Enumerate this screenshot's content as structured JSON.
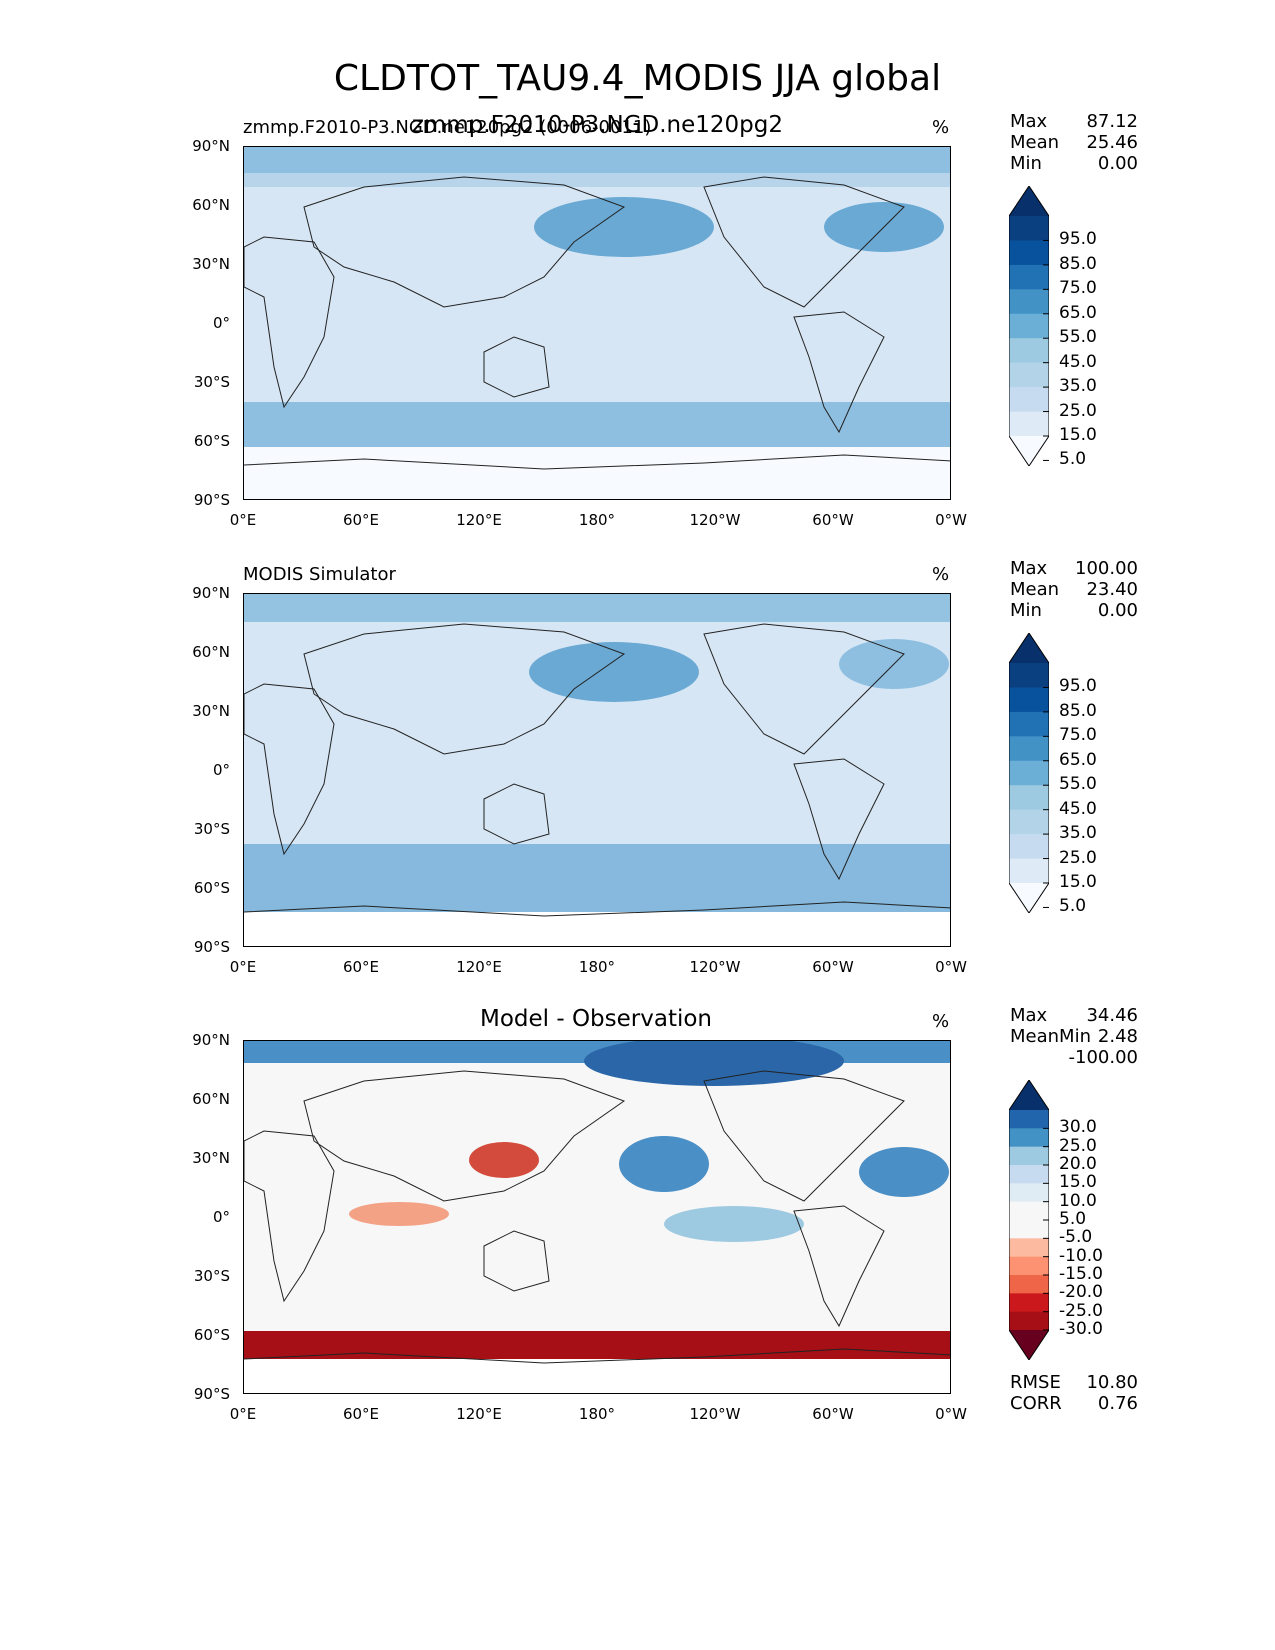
{
  "figure": {
    "title": "CLDTOT_TAU9.4_MODIS JJA global",
    "y_ticks": [
      "90°N",
      "60°N",
      "30°N",
      "0°",
      "30°S",
      "60°S",
      "90°S"
    ],
    "x_ticks": [
      "0°E",
      "60°E",
      "120°E",
      "180°",
      "120°W",
      "60°W",
      "0°W"
    ]
  },
  "panels": [
    {
      "id": "test",
      "title_left": "zmmp.F2010-P3.NGD.ne120pg2 (0006-0011)",
      "title_center": "zmmp.F2010-P3.NGD.ne120pg2",
      "units": "%",
      "stats": [
        {
          "label": "Max",
          "value": "87.12"
        },
        {
          "label": "Mean",
          "value": "25.46"
        },
        {
          "label": "Min",
          "value": "0.00"
        }
      ],
      "colorbar": {
        "colors": [
          "#f7fbff",
          "#deebf7",
          "#c6dbef",
          "#b3d3e8",
          "#9ecae1",
          "#6baed6",
          "#4292c6",
          "#2171b5",
          "#08519c",
          "#0a3f80",
          "#08306b"
        ],
        "labels": [
          "95.0",
          "85.0",
          "75.0",
          "65.0",
          "55.0",
          "45.0",
          "35.0",
          "25.0",
          "15.0",
          "5.0"
        ]
      }
    },
    {
      "id": "ref",
      "title_left": "MODIS Simulator",
      "title_center": "",
      "units": "%",
      "stats": [
        {
          "label": "Max",
          "value": "100.00"
        },
        {
          "label": "Mean",
          "value": "23.40"
        },
        {
          "label": "Min",
          "value": "0.00"
        }
      ],
      "colorbar": {
        "colors": [
          "#f7fbff",
          "#deebf7",
          "#c6dbef",
          "#b3d3e8",
          "#9ecae1",
          "#6baed6",
          "#4292c6",
          "#2171b5",
          "#08519c",
          "#0a3f80",
          "#08306b"
        ],
        "labels": [
          "95.0",
          "85.0",
          "75.0",
          "65.0",
          "55.0",
          "45.0",
          "35.0",
          "25.0",
          "15.0",
          "5.0"
        ]
      }
    },
    {
      "id": "diff",
      "title_left": "",
      "title_center": "Model - Observation",
      "units": "%",
      "stats": [
        {
          "label": "Max",
          "value": "34.46"
        },
        {
          "label": "Mean",
          "value": "2.48"
        },
        {
          "label": "Min",
          "value": "-100.00"
        }
      ],
      "extra_stats": [
        {
          "label": "RMSE",
          "value": "10.80"
        },
        {
          "label": "CORR",
          "value": "0.76"
        }
      ],
      "colorbar": {
        "colors": [
          "#67001f",
          "#a50f15",
          "#cb181d",
          "#ef6548",
          "#fc9272",
          "#fcbba1",
          "#f7f7f7",
          "#f7f7f7",
          "#e0ecf4",
          "#c6dbef",
          "#9ecae1",
          "#4292c6",
          "#2166ac",
          "#08306b"
        ],
        "labels": [
          "30.0",
          "25.0",
          "20.0",
          "15.0",
          "10.0",
          "5.0",
          "-5.0",
          "-10.0",
          "-15.0",
          "-20.0",
          "-25.0",
          "-30.0"
        ]
      }
    }
  ]
}
